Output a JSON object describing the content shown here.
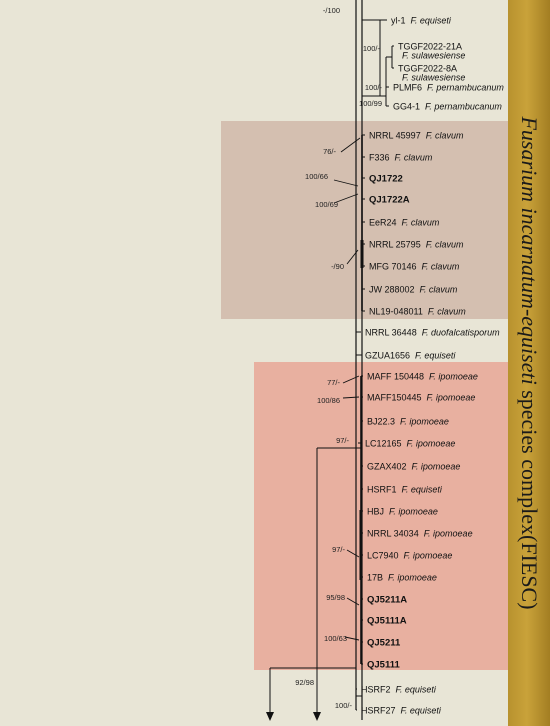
{
  "colors": {
    "background": "#e8e5d6",
    "clavum_box": "#d4bfb0",
    "ipomoeae_box": "#e8b0a0",
    "sidebar": "#c09a30"
  },
  "complex_label": {
    "italic_part": "Fusarium incarnatum-equiseti",
    "plain_part": " species complex(FIESC)"
  },
  "taxa": [
    {
      "id": "yl-1",
      "species": "F. equiseti",
      "bold": false
    },
    {
      "id": "TGGF2022-21A",
      "species": "F. sulawesiense",
      "bold": false,
      "stacked": true
    },
    {
      "id": "TGGF2022-8A",
      "species": "F. sulawesiense",
      "bold": false,
      "stacked": true
    },
    {
      "id": "PLMF6",
      "species": "F. pernambucanum",
      "bold": false
    },
    {
      "id": "GG4-1",
      "species": "F. pernambucanum",
      "bold": false
    },
    {
      "id": "NRRL 45997",
      "species": "F. clavum",
      "bold": false
    },
    {
      "id": "F336",
      "species": "F. clavum",
      "bold": false
    },
    {
      "id": "QJ1722",
      "species": "",
      "bold": true
    },
    {
      "id": "QJ1722A",
      "species": "",
      "bold": true
    },
    {
      "id": "EeR24",
      "species": "F. clavum",
      "bold": false
    },
    {
      "id": "NRRL 25795",
      "species": "F. clavum",
      "bold": false
    },
    {
      "id": "MFG 70146",
      "species": "F. clavum",
      "bold": false
    },
    {
      "id": "JW 288002",
      "species": "F. clavum",
      "bold": false
    },
    {
      "id": "NL19-048011",
      "species": "F. clavum",
      "bold": false
    },
    {
      "id": "NRRL 36448",
      "species": "F. duofalcatisporum",
      "bold": false
    },
    {
      "id": "GZUA1656",
      "species": "F. equiseti",
      "bold": false
    },
    {
      "id": "MAFF 150448",
      "species": "F. ipomoeae",
      "bold": false
    },
    {
      "id": "MAFF150445",
      "species": "F. ipomoeae",
      "bold": false
    },
    {
      "id": "BJ22.3",
      "species": "F. ipomoeae",
      "bold": false
    },
    {
      "id": "LC12165",
      "species": "F. ipomoeae",
      "bold": false
    },
    {
      "id": "GZAX402",
      "species": "F. ipomoeae",
      "bold": false
    },
    {
      "id": "HSRF1",
      "species": "F. equiseti",
      "bold": false
    },
    {
      "id": "HBJ",
      "species": "F. ipomoeae",
      "bold": false
    },
    {
      "id": "NRRL 34034",
      "species": "F. ipomoeae",
      "bold": false
    },
    {
      "id": "LC7940",
      "species": "F. ipomoeae",
      "bold": false
    },
    {
      "id": "17B",
      "species": "F. ipomoeae",
      "bold": false
    },
    {
      "id": "QJ5211A",
      "species": "",
      "bold": true
    },
    {
      "id": "QJ5111A",
      "species": "",
      "bold": true
    },
    {
      "id": "QJ5211",
      "species": "",
      "bold": true
    },
    {
      "id": "QJ5111",
      "species": "",
      "bold": true
    },
    {
      "id": "HSRF2",
      "species": "F. equiseti",
      "bold": false
    },
    {
      "id": "HSRF27",
      "species": "F. equiseti",
      "bold": false
    }
  ],
  "support_values": [
    "-/100",
    "100/-",
    "100/-",
    "100/99",
    "76/-",
    "100/66",
    "100/69",
    "-/90",
    "77/-",
    "100/86",
    "97/-",
    "97/-",
    "95/98",
    "100/63",
    "92/98",
    "100/-"
  ]
}
